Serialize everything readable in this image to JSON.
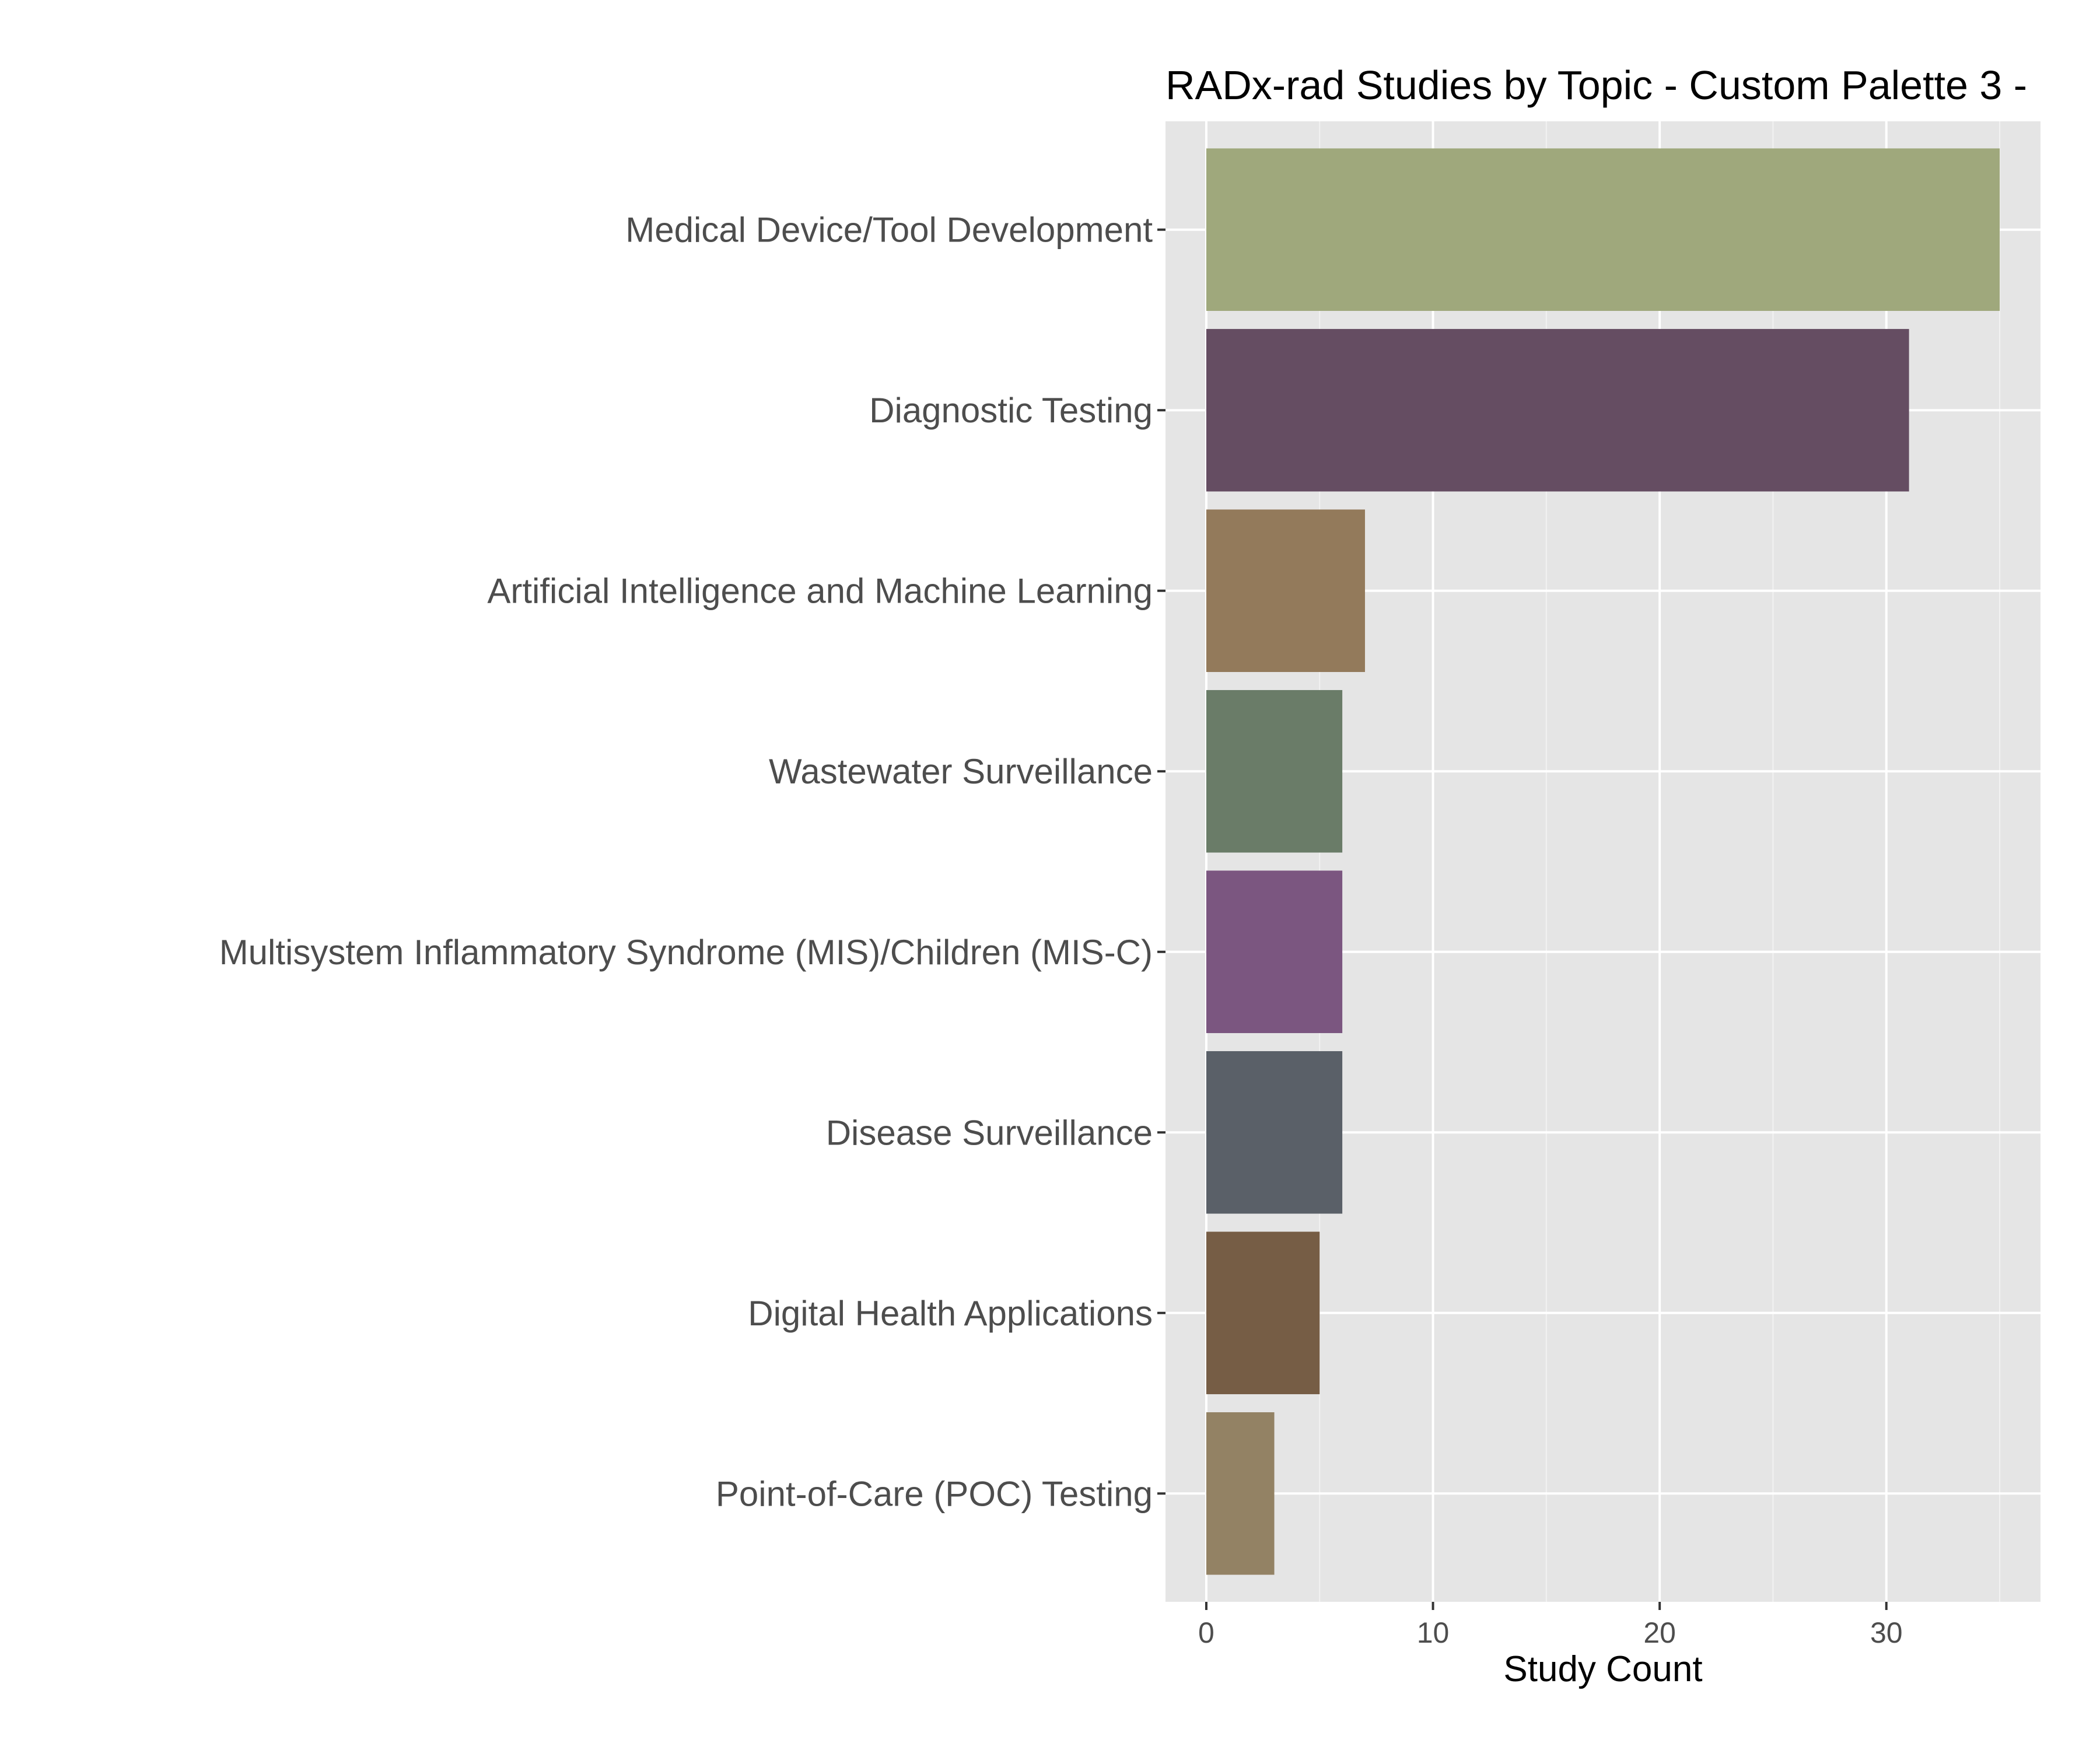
{
  "chart_data": {
    "type": "bar",
    "orientation": "horizontal",
    "title": "RADx-rad Studies by Topic - Custom Palette 3 -",
    "xlabel": "Study Count",
    "ylabel": "",
    "xlim": [
      -1.8,
      36.8
    ],
    "xticks": [
      0,
      10,
      20,
      30
    ],
    "grid": true,
    "legend": "none",
    "background": "#e5e5e5",
    "categories": [
      "Medical Device/Tool Development",
      "Diagnostic Testing",
      "Artificial Intelligence and Machine Learning",
      "Wastewater Surveillance",
      "Multisystem Inflammatory Syndrome (MIS)/Children (MIS-C)",
      "Disease Surveillance",
      "Digital Health Applications",
      "Point-of-Care (POC) Testing"
    ],
    "values": [
      35,
      31,
      7,
      6,
      6,
      6,
      5,
      3
    ],
    "colors": [
      "#9fa87c",
      "#654d62",
      "#937a5b",
      "#6a7c68",
      "#7b5680",
      "#5a6068",
      "#765d45",
      "#938264"
    ]
  }
}
